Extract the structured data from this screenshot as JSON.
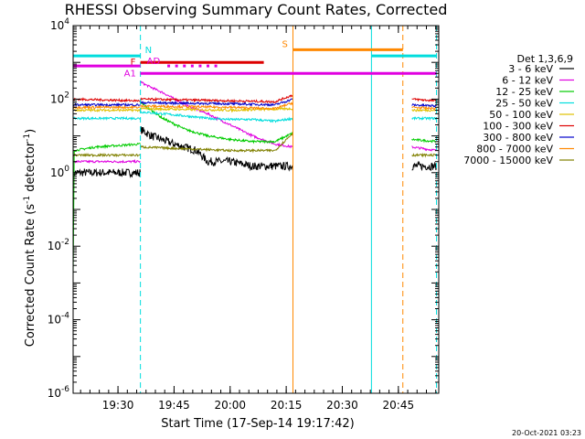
{
  "chart_data": {
    "type": "line",
    "title": "RHESSI Observing Summary Count Rates, Corrected",
    "xlabel": "Start Time (17-Sep-14 19:17:42)",
    "ylabel": "Corrected Count Rate (s",
    "ylabel_sup": "-1",
    "ylabel_tail": " detector",
    "ylabel_end": ")",
    "y_scale": "log",
    "ylim": [
      1e-06,
      10000
    ],
    "xlim_minutes": [
      19.3,
      20.93
    ],
    "x_ticks": [
      {
        "label": "19:30",
        "t": 19.5
      },
      {
        "label": "19:45",
        "t": 19.75
      },
      {
        "label": "20:00",
        "t": 20.0
      },
      {
        "label": "20:15",
        "t": 20.25
      },
      {
        "label": "20:30",
        "t": 20.5
      },
      {
        "label": "20:45",
        "t": 20.75
      }
    ],
    "y_ticks": [
      {
        "mantissa": "10",
        "exp": "4",
        "v": 4
      },
      {
        "mantissa": "10",
        "exp": "2",
        "v": 2
      },
      {
        "mantissa": "10",
        "exp": "0",
        "v": 0
      },
      {
        "mantissa": "10",
        "exp": "-2",
        "v": -2
      },
      {
        "mantissa": "10",
        "exp": "-4",
        "v": -4
      },
      {
        "mantissa": "10",
        "exp": "-6",
        "v": -6
      }
    ],
    "legend_title": "Det 1,3,6,9",
    "legend_position": "right",
    "series": [
      {
        "name": "3 - 6 keV",
        "color": "#000000",
        "segments": [
          [
            [
              19.3,
              1.0
            ],
            [
              19.6,
              1.0
            ]
          ],
          [
            [
              19.6,
              15
            ],
            [
              19.65,
              10
            ],
            [
              19.75,
              6
            ],
            [
              19.85,
              4
            ],
            [
              19.9,
              2
            ],
            [
              20.0,
              2
            ],
            [
              20.1,
              1.5
            ],
            [
              20.28,
              1.5
            ]
          ],
          [
            [
              20.81,
              1.5
            ],
            [
              20.92,
              1.5
            ]
          ]
        ]
      },
      {
        "name": "6 - 12 keV",
        "color": "#e000e0",
        "segments": [
          [
            [
              19.3,
              2.0
            ],
            [
              19.6,
              2.0
            ]
          ],
          [
            [
              19.6,
              300
            ],
            [
              19.62,
              250
            ],
            [
              19.7,
              150
            ],
            [
              19.8,
              70
            ],
            [
              19.9,
              40
            ],
            [
              20.0,
              20
            ],
            [
              20.1,
              10
            ],
            [
              20.2,
              6
            ],
            [
              20.28,
              5
            ]
          ],
          [
            [
              20.81,
              5
            ],
            [
              20.92,
              4
            ]
          ]
        ]
      },
      {
        "name": "12 - 25 keV",
        "color": "#00cc00",
        "segments": [
          [
            [
              19.3,
              0.0015
            ],
            [
              19.305,
              4
            ],
            [
              19.4,
              5
            ],
            [
              19.6,
              6
            ]
          ],
          [
            [
              19.6,
              80
            ],
            [
              19.7,
              30
            ],
            [
              19.8,
              15
            ],
            [
              19.9,
              10
            ],
            [
              20.0,
              8
            ],
            [
              20.1,
              7
            ],
            [
              20.2,
              7
            ],
            [
              20.28,
              12
            ]
          ],
          [
            [
              20.81,
              8
            ],
            [
              20.92,
              7
            ]
          ]
        ]
      },
      {
        "name": "25 - 50 keV",
        "color": "#00dddd",
        "segments": [
          [
            [
              19.3,
              30
            ],
            [
              19.6,
              30
            ]
          ],
          [
            [
              19.6,
              45
            ],
            [
              19.7,
              40
            ],
            [
              19.8,
              35
            ],
            [
              19.9,
              30
            ],
            [
              20.0,
              28
            ],
            [
              20.1,
              28
            ],
            [
              20.2,
              25
            ],
            [
              20.28,
              30
            ]
          ],
          [
            [
              20.81,
              30
            ],
            [
              20.92,
              30
            ]
          ]
        ]
      },
      {
        "name": "50 - 100 keV",
        "color": "#e0c000",
        "segments": [
          [
            [
              19.3,
              50
            ],
            [
              19.6,
              50
            ]
          ],
          [
            [
              19.6,
              55
            ],
            [
              20.0,
              50
            ],
            [
              20.28,
              55
            ]
          ],
          [
            [
              20.81,
              50
            ],
            [
              20.92,
              50
            ]
          ]
        ]
      },
      {
        "name": "100 - 300 keV",
        "color": "#dd0000",
        "segments": [
          [
            [
              19.3,
              100
            ],
            [
              19.6,
              90
            ]
          ],
          [
            [
              19.6,
              100
            ],
            [
              19.8,
              95
            ],
            [
              20.0,
              90
            ],
            [
              20.2,
              85
            ],
            [
              20.28,
              130
            ]
          ],
          [
            [
              20.81,
              100
            ],
            [
              20.92,
              90
            ]
          ]
        ]
      },
      {
        "name": "300 - 800 keV",
        "color": "#0000cc",
        "segments": [
          [
            [
              19.3,
              70
            ],
            [
              19.6,
              70
            ]
          ],
          [
            [
              19.6,
              80
            ],
            [
              20.0,
              75
            ],
            [
              20.2,
              70
            ],
            [
              20.28,
              100
            ]
          ],
          [
            [
              20.81,
              70
            ],
            [
              20.92,
              65
            ]
          ]
        ]
      },
      {
        "name": "800 - 7000 keV",
        "color": "#ff8800",
        "segments": [
          [
            [
              19.3,
              60
            ],
            [
              19.6,
              60
            ]
          ],
          [
            [
              19.6,
              65
            ],
            [
              20.0,
              60
            ],
            [
              20.2,
              55
            ],
            [
              20.28,
              80
            ]
          ],
          [
            [
              20.81,
              60
            ],
            [
              20.92,
              55
            ]
          ]
        ]
      },
      {
        "name": "7000 - 15000 keV",
        "color": "#808000",
        "segments": [
          [
            [
              19.3,
              3.0
            ],
            [
              19.6,
              3.0
            ]
          ],
          [
            [
              19.6,
              5
            ],
            [
              20.0,
              4
            ],
            [
              20.2,
              4
            ],
            [
              20.28,
              12
            ]
          ],
          [
            [
              20.81,
              3
            ],
            [
              20.92,
              3
            ]
          ]
        ]
      }
    ],
    "flag_bars": [
      {
        "label": "N",
        "color": "#00dddd",
        "segments": [
          [
            19.3,
            19.6
          ],
          [
            20.63,
            20.92
          ]
        ],
        "level": 1500
      },
      {
        "label": "S",
        "color": "#ff8800",
        "segments": [
          [
            20.28,
            20.77
          ]
        ],
        "level": 2200
      },
      {
        "label": "F",
        "color": "#dd0000",
        "segments": [
          [
            19.6,
            20.15
          ]
        ],
        "level": 1000
      },
      {
        "label": "AD",
        "color": "#e000e0",
        "segments": [
          [
            19.3,
            19.6
          ]
        ],
        "level": 800
      },
      {
        "label": "A1",
        "color": "#e000e0",
        "segments": [
          [
            19.6,
            20.92
          ]
        ],
        "level": 500
      }
    ],
    "markers": [
      {
        "name": "cyan-solid",
        "t": 19.3,
        "color": "#00dddd",
        "style": "solid"
      },
      {
        "name": "cyan-dashed",
        "t": 19.6,
        "color": "#00dddd",
        "style": "dashed"
      },
      {
        "name": "orange-solid",
        "t": 20.28,
        "color": "#ff8800",
        "style": "solid"
      },
      {
        "name": "cyan-solid-2",
        "t": 20.63,
        "color": "#00dddd",
        "style": "solid"
      },
      {
        "name": "orange-dashed",
        "t": 20.77,
        "color": "#ff8800",
        "style": "dashed"
      },
      {
        "name": "cyan-dashed-2",
        "t": 20.92,
        "color": "#00dddd",
        "style": "dashed"
      }
    ],
    "footer_date": "20-Oct-2021 03:23"
  }
}
